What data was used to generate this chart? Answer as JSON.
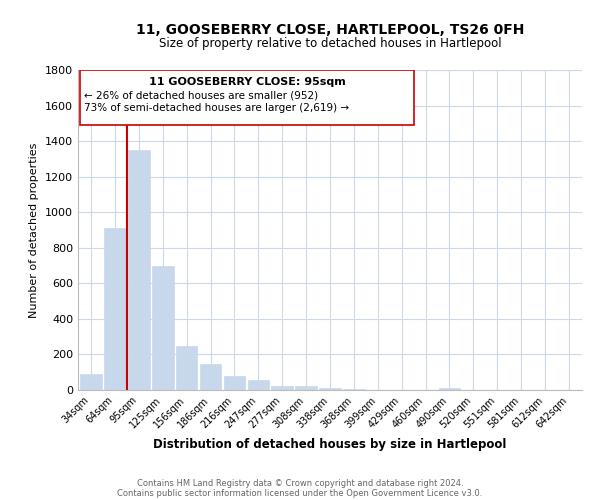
{
  "title": "11, GOOSEBERRY CLOSE, HARTLEPOOL, TS26 0FH",
  "subtitle": "Size of property relative to detached houses in Hartlepool",
  "xlabel": "Distribution of detached houses by size in Hartlepool",
  "ylabel": "Number of detached properties",
  "bar_labels": [
    "34sqm",
    "64sqm",
    "95sqm",
    "125sqm",
    "156sqm",
    "186sqm",
    "216sqm",
    "247sqm",
    "277sqm",
    "308sqm",
    "338sqm",
    "368sqm",
    "399sqm",
    "429sqm",
    "460sqm",
    "490sqm",
    "520sqm",
    "551sqm",
    "581sqm",
    "612sqm",
    "642sqm"
  ],
  "bar_values": [
    90,
    910,
    1350,
    700,
    250,
    145,
    80,
    55,
    25,
    20,
    10,
    5,
    0,
    0,
    0,
    10,
    0,
    0,
    0,
    0,
    0
  ],
  "bar_color": "#c8d8ec",
  "vline_color": "#cc0000",
  "vline_index": 2,
  "ylim": [
    0,
    1800
  ],
  "yticks": [
    0,
    200,
    400,
    600,
    800,
    1000,
    1200,
    1400,
    1600,
    1800
  ],
  "annotation_title": "11 GOOSEBERRY CLOSE: 95sqm",
  "annotation_line1": "← 26% of detached houses are smaller (952)",
  "annotation_line2": "73% of semi-detached houses are larger (2,619) →",
  "footnote1": "Contains HM Land Registry data © Crown copyright and database right 2024.",
  "footnote2": "Contains public sector information licensed under the Open Government Licence v3.0.",
  "background_color": "#ffffff",
  "grid_color": "#ccd9e8"
}
